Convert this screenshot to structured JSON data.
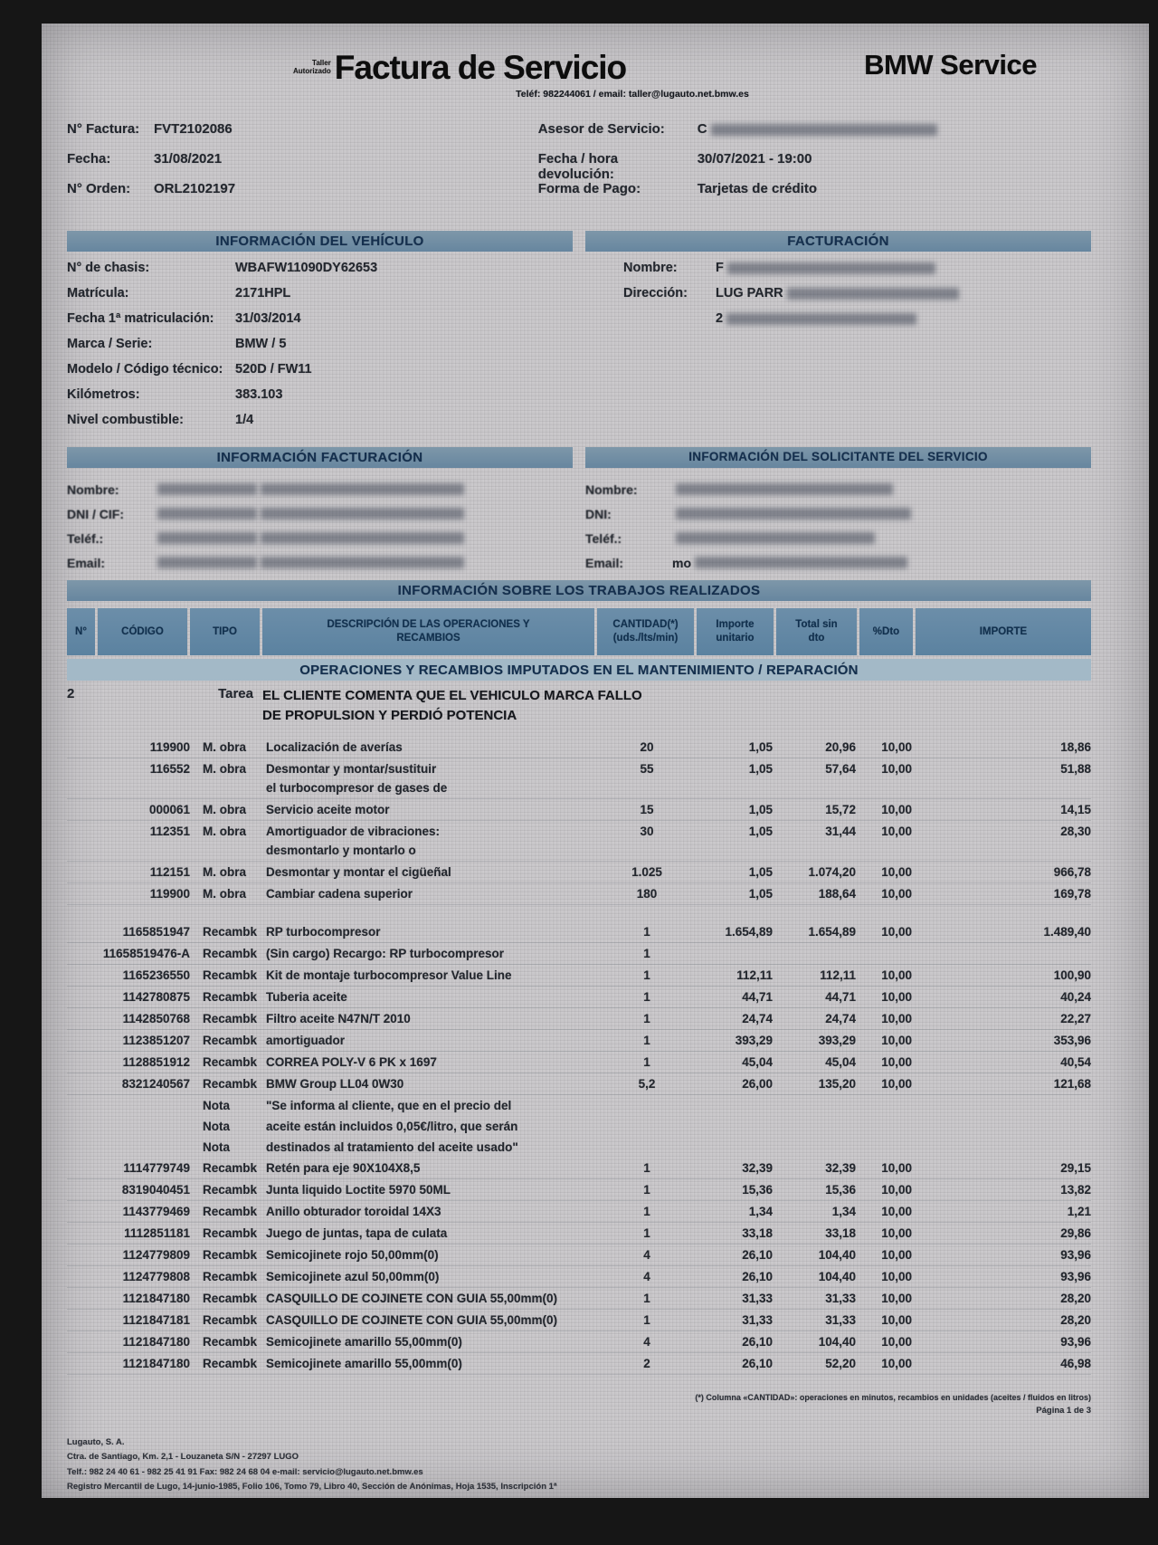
{
  "colors": {
    "bar": "#67869f",
    "table_header": "#5b82a0",
    "band": "#a3b9c7",
    "paper": "#c8c6c9"
  },
  "header": {
    "taller1": "Taller",
    "taller2": "Autorizado",
    "title": "Factura de Servicio",
    "contact": "Teléf: 982244061 / email: taller@lugauto.net.bmw.es",
    "brand": "BMW Service"
  },
  "meta": {
    "left": [
      {
        "label": "N° Factura:",
        "value": "FVT2102086"
      },
      {
        "label": "Fecha:",
        "value": "31/08/2021"
      },
      {
        "label": "N° Orden:",
        "value": "ORL2102197"
      }
    ],
    "right": [
      {
        "label": "Asesor de Servicio:",
        "value": "C"
      },
      {
        "label": "Fecha / hora devolución:",
        "value": "30/07/2021 - 19:00"
      },
      {
        "label": "Forma de Pago:",
        "value": "Tarjetas de crédito"
      }
    ]
  },
  "vehicle": {
    "title": "INFORMACIÓN DEL VEHÍCULO",
    "rows": [
      {
        "label": "N° de chasis:",
        "value": "WBAFW11090DY62653"
      },
      {
        "label": "Matrícula:",
        "value": "2171HPL"
      },
      {
        "label": "Fecha 1ª matriculación:",
        "value": "31/03/2014"
      },
      {
        "label": "Marca / Serie:",
        "value": "BMW / 5"
      },
      {
        "label": "Modelo / Código técnico:",
        "value": "520D / FW11"
      },
      {
        "label": "Kilómetros:",
        "value": "383.103"
      },
      {
        "label": "Nivel combustible:",
        "value": "1/4"
      }
    ]
  },
  "billing": {
    "title": "FACTURACIÓN",
    "rows": [
      {
        "label": "Nombre:",
        "frag": "F"
      },
      {
        "label": "Dirección:",
        "frag": "LUG PARR"
      },
      {
        "label": "",
        "frag": "2"
      }
    ]
  },
  "info_billing": {
    "title": "INFORMACIÓN FACTURACIÓN",
    "labels": [
      "Nombre:",
      "DNI / CIF:",
      "Teléf.:",
      "Email:"
    ]
  },
  "requester": {
    "title": "INFORMACIÓN DEL SOLICITANTE DEL SERVICIO",
    "labels": [
      "Nombre:",
      "DNI:",
      "Teléf.:",
      "Email:"
    ],
    "email_frag": "mo"
  },
  "works": {
    "title": "INFORMACIÓN SOBRE LOS TRABAJOS REALIZADOS",
    "columns": [
      [
        "N°"
      ],
      [
        "CÓDIGO"
      ],
      [
        "TIPO"
      ],
      [
        "DESCRIPCIÓN DE LAS OPERACIONES Y",
        "RECAMBIOS"
      ],
      [
        "CANTIDAD(*)",
        "(uds./lts/min)"
      ],
      [
        "Importe",
        "unitario"
      ],
      [
        "Total sin",
        "dto"
      ],
      [
        "%Dto"
      ],
      [
        "IMPORTE"
      ]
    ],
    "section": "OPERACIONES Y RECAMBIOS IMPUTADOS EN EL MANTENIMIENTO / REPARACIÓN",
    "task": {
      "num": "2",
      "tipo": "Tarea",
      "desc": [
        "EL CLIENTE COMENTA QUE EL VEHICULO MARCA FALLO",
        "DE PROPULSION Y PERDIÓ POTENCIA"
      ]
    },
    "rows": [
      {
        "kind": "",
        "code": "119900",
        "tipo": "M. obra",
        "desc": [
          "Localización de averías"
        ],
        "qty": "20",
        "unit": "1,05",
        "total": "20,96",
        "dto": "10,00",
        "amount": "18,86"
      },
      {
        "kind": "",
        "code": "116552",
        "tipo": "M. obra",
        "desc": [
          "Desmontar y montar/sustituir",
          "el turbocompresor de gases de"
        ],
        "qty": "55",
        "unit": "1,05",
        "total": "57,64",
        "dto": "10,00",
        "amount": "51,88"
      },
      {
        "kind": "",
        "code": "000061",
        "tipo": "M. obra",
        "desc": [
          "Servicio aceite motor"
        ],
        "qty": "15",
        "unit": "1,05",
        "total": "15,72",
        "dto": "10,00",
        "amount": "14,15"
      },
      {
        "kind": "",
        "code": "112351",
        "tipo": "M. obra",
        "desc": [
          "Amortiguador de vibraciones:",
          "desmontarlo y montarlo o"
        ],
        "qty": "30",
        "unit": "1,05",
        "total": "31,44",
        "dto": "10,00",
        "amount": "28,30"
      },
      {
        "kind": "",
        "code": "112151",
        "tipo": "M. obra",
        "desc": [
          "Desmontar y montar el cigüeñal"
        ],
        "qty": "1.025",
        "unit": "1,05",
        "total": "1.074,20",
        "dto": "10,00",
        "amount": "966,78"
      },
      {
        "kind": "",
        "code": "119900",
        "tipo": "M. obra",
        "desc": [
          "Cambiar cadena superior"
        ],
        "qty": "180",
        "unit": "1,05",
        "total": "188,64",
        "dto": "10,00",
        "amount": "169,78"
      },
      {
        "kind": "gap",
        "code": "1165851947",
        "tipo": "Recambk",
        "desc": [
          "RP turbocompresor"
        ],
        "qty": "1",
        "unit": "1.654,89",
        "total": "1.654,89",
        "dto": "10,00",
        "amount": "1.489,40"
      },
      {
        "kind": "",
        "code": "11658519476-A",
        "tipo": "Recambk",
        "desc": [
          "(Sin cargo) Recargo: RP turbocompresor"
        ],
        "qty": "1",
        "unit": "",
        "total": "",
        "dto": "",
        "amount": ""
      },
      {
        "kind": "",
        "code": "1165236550",
        "tipo": "Recambk",
        "desc": [
          "Kit de montaje turbocompresor Value Line"
        ],
        "qty": "1",
        "unit": "112,11",
        "total": "112,11",
        "dto": "10,00",
        "amount": "100,90"
      },
      {
        "kind": "",
        "code": "1142780875",
        "tipo": "Recambk",
        "desc": [
          "Tuberia aceite"
        ],
        "qty": "1",
        "unit": "44,71",
        "total": "44,71",
        "dto": "10,00",
        "amount": "40,24"
      },
      {
        "kind": "",
        "code": "1142850768",
        "tipo": "Recambk",
        "desc": [
          "Filtro aceite N47N/T 2010"
        ],
        "qty": "1",
        "unit": "24,74",
        "total": "24,74",
        "dto": "10,00",
        "amount": "22,27"
      },
      {
        "kind": "",
        "code": "1123851207",
        "tipo": "Recambk",
        "desc": [
          "amortiguador"
        ],
        "qty": "1",
        "unit": "393,29",
        "total": "393,29",
        "dto": "10,00",
        "amount": "353,96"
      },
      {
        "kind": "",
        "code": "1128851912",
        "tipo": "Recambk",
        "desc": [
          "CORREA POLY-V 6 PK x 1697"
        ],
        "qty": "1",
        "unit": "45,04",
        "total": "45,04",
        "dto": "10,00",
        "amount": "40,54"
      },
      {
        "kind": "",
        "code": "8321240567",
        "tipo": "Recambk",
        "desc": [
          "BMW Group LL04 0W30"
        ],
        "qty": "5,2",
        "unit": "26,00",
        "total": "135,20",
        "dto": "10,00",
        "amount": "121,68"
      },
      {
        "kind": "note",
        "code": "",
        "tipo": "Nota",
        "desc": [
          "\"Se informa al cliente, que en el precio del"
        ],
        "qty": "",
        "unit": "",
        "total": "",
        "dto": "",
        "amount": ""
      },
      {
        "kind": "note",
        "code": "",
        "tipo": "Nota",
        "desc": [
          "aceite están incluidos 0,05€/litro, que serán"
        ],
        "qty": "",
        "unit": "",
        "total": "",
        "dto": "",
        "amount": ""
      },
      {
        "kind": "note",
        "code": "",
        "tipo": "Nota",
        "desc": [
          "destinados al tratamiento del aceite usado\""
        ],
        "qty": "",
        "unit": "",
        "total": "",
        "dto": "",
        "amount": ""
      },
      {
        "kind": "",
        "code": "1114779749",
        "tipo": "Recambk",
        "desc": [
          "Retén para eje 90X104X8,5"
        ],
        "qty": "1",
        "unit": "32,39",
        "total": "32,39",
        "dto": "10,00",
        "amount": "29,15"
      },
      {
        "kind": "",
        "code": "8319040451",
        "tipo": "Recambk",
        "desc": [
          "Junta liquido Loctite 5970 50ML"
        ],
        "qty": "1",
        "unit": "15,36",
        "total": "15,36",
        "dto": "10,00",
        "amount": "13,82"
      },
      {
        "kind": "",
        "code": "1143779469",
        "tipo": "Recambk",
        "desc": [
          "Anillo obturador toroidal 14X3"
        ],
        "qty": "1",
        "unit": "1,34",
        "total": "1,34",
        "dto": "10,00",
        "amount": "1,21"
      },
      {
        "kind": "",
        "code": "1112851181",
        "tipo": "Recambk",
        "desc": [
          "Juego de juntas, tapa de culata"
        ],
        "qty": "1",
        "unit": "33,18",
        "total": "33,18",
        "dto": "10,00",
        "amount": "29,86"
      },
      {
        "kind": "",
        "code": "1124779809",
        "tipo": "Recambk",
        "desc": [
          "Semicojinete rojo 50,00mm(0)"
        ],
        "qty": "4",
        "unit": "26,10",
        "total": "104,40",
        "dto": "10,00",
        "amount": "93,96"
      },
      {
        "kind": "",
        "code": "1124779808",
        "tipo": "Recambk",
        "desc": [
          "Semicojinete azul 50,00mm(0)"
        ],
        "qty": "4",
        "unit": "26,10",
        "total": "104,40",
        "dto": "10,00",
        "amount": "93,96"
      },
      {
        "kind": "",
        "code": "1121847180",
        "tipo": "Recambk",
        "desc": [
          "CASQUILLO DE COJINETE CON GUIA 55,00mm(0)"
        ],
        "qty": "1",
        "unit": "31,33",
        "total": "31,33",
        "dto": "10,00",
        "amount": "28,20"
      },
      {
        "kind": "",
        "code": "1121847181",
        "tipo": "Recambk",
        "desc": [
          "CASQUILLO DE COJINETE CON GUIA 55,00mm(0)"
        ],
        "qty": "1",
        "unit": "31,33",
        "total": "31,33",
        "dto": "10,00",
        "amount": "28,20"
      },
      {
        "kind": "",
        "code": "1121847180",
        "tipo": "Recambk",
        "desc": [
          "Semicojinete amarillo 55,00mm(0)"
        ],
        "qty": "4",
        "unit": "26,10",
        "total": "104,40",
        "dto": "10,00",
        "amount": "93,96"
      },
      {
        "kind": "",
        "code": "1121847180",
        "tipo": "Recambk",
        "desc": [
          "Semicojinete amarillo 55,00mm(0)"
        ],
        "qty": "2",
        "unit": "26,10",
        "total": "52,20",
        "dto": "10,00",
        "amount": "46,98"
      }
    ]
  },
  "footnote": {
    "text": "(*) Columna «CANTIDAD»: operaciones en minutos, recambios en unidades (aceites / fluidos en litros)",
    "page": "Página 1 de 3"
  },
  "footer": {
    "lines": [
      "Lugauto, S. A.",
      "Ctra. de Santiago, Km. 2,1 - Louzaneta S/N - 27297 LUGO",
      "Telf.: 982 24 40 61 - 982 25 41 91   Fax: 982 24 68 04   e-mail: servicio@lugauto.net.bmw.es",
      "Registro Mercantil de Lugo, 14-junio-1985, Folio 106, Tomo 79, Libro 40, Sección de Anónimas, Hoja 1535, Inscripción 1ª"
    ]
  }
}
